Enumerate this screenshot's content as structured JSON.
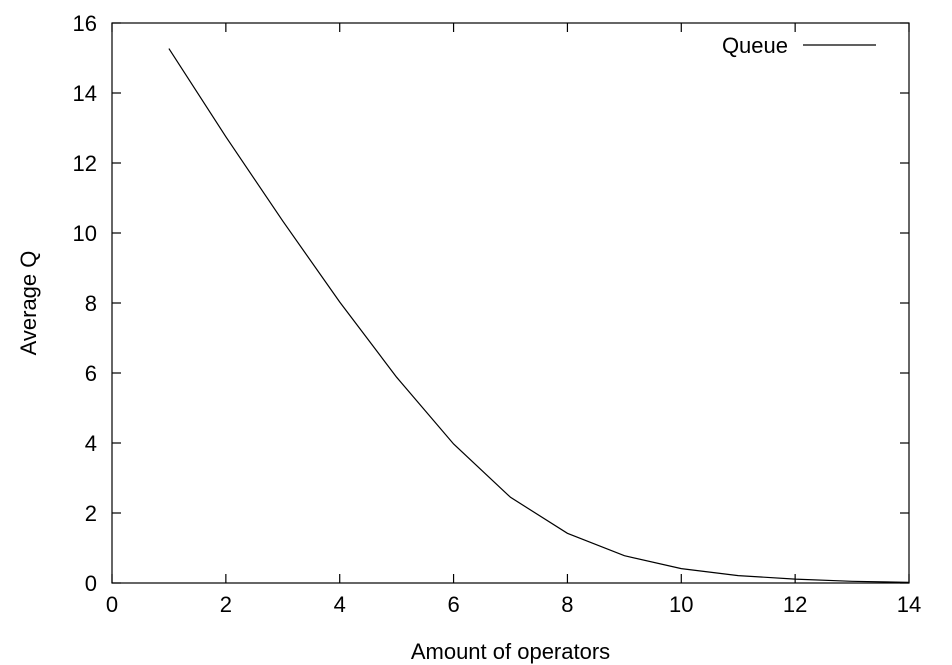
{
  "chart_data": {
    "type": "line",
    "xlabel": "Amount of operators",
    "ylabel": "Average Q",
    "xlim": [
      0,
      14
    ],
    "ylim": [
      0,
      16
    ],
    "xticks": [
      0,
      2,
      4,
      6,
      8,
      10,
      12,
      14
    ],
    "yticks": [
      0,
      2,
      4,
      6,
      8,
      10,
      12,
      14,
      16
    ],
    "grid": false,
    "legend_position": "top-right",
    "series": [
      {
        "name": "Queue",
        "color": "#000000",
        "x": [
          1,
          2,
          3,
          4,
          5,
          6,
          7,
          8,
          9,
          10,
          11,
          12,
          13,
          14
        ],
        "y": [
          15.27,
          12.75,
          10.34,
          8.03,
          5.88,
          3.97,
          2.45,
          1.42,
          0.78,
          0.41,
          0.21,
          0.11,
          0.05,
          0.02
        ]
      }
    ]
  }
}
